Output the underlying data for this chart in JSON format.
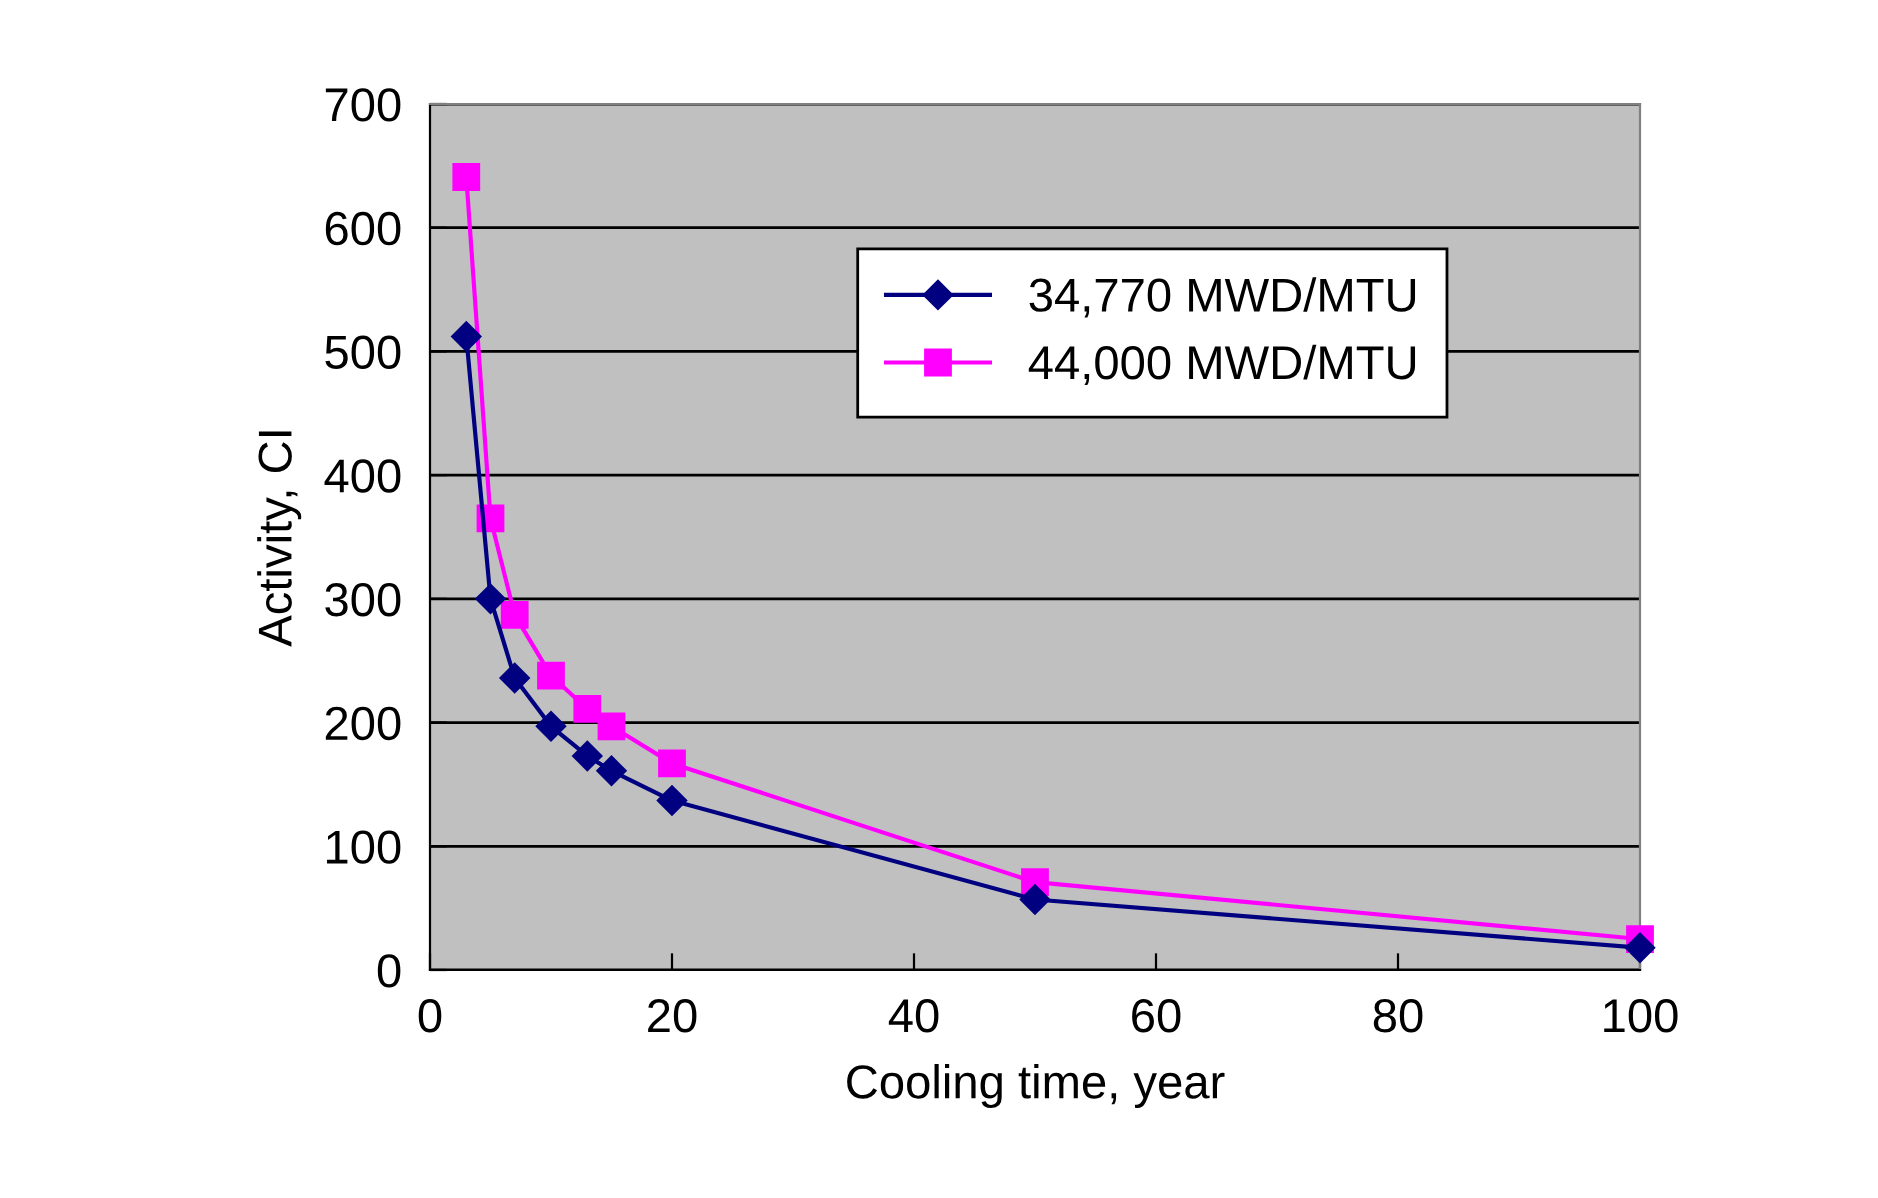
{
  "chart_data": {
    "type": "line",
    "xlabel": "Cooling time, year",
    "ylabel": "Activity, CI",
    "x": [
      3,
      5,
      7,
      10,
      13,
      15,
      20,
      50,
      100
    ],
    "series": [
      {
        "name": "34,770 MWD/MTU",
        "color": "#000080",
        "marker": "diamond",
        "values": [
          512,
          300,
          236,
          197,
          173,
          161,
          137,
          57,
          18
        ]
      },
      {
        "name": "44,000 MWD/MTU",
        "color": "#ff00ff",
        "marker": "square",
        "values": [
          641,
          365,
          287,
          238,
          211,
          197,
          167,
          71,
          25
        ]
      }
    ],
    "xlim": [
      0,
      100
    ],
    "xticks": [
      0,
      20,
      40,
      60,
      80,
      100
    ],
    "ylim": [
      0,
      700
    ],
    "yticks": [
      0,
      100,
      200,
      300,
      400,
      500,
      600,
      700
    ],
    "grid": "y",
    "legend": "top right",
    "line_style": "solid"
  }
}
